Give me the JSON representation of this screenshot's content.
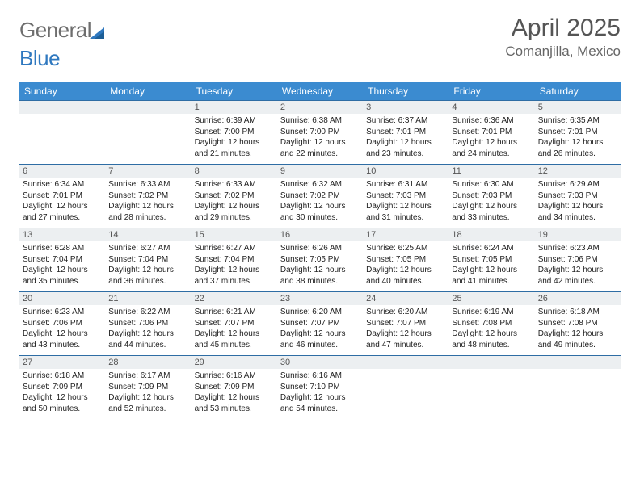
{
  "brand": {
    "part1": "General",
    "part2": "Blue"
  },
  "title": "April 2025",
  "location": "Comanjilla, Mexico",
  "colors": {
    "header_bg": "#3b8bd0",
    "header_text": "#ffffff",
    "row_border": "#2e6da4",
    "daynum_bg": "#eceff1",
    "body_text": "#222222",
    "title_text": "#555555",
    "logo_gray": "#6e6e6e",
    "logo_blue": "#2f78bf"
  },
  "weekdays": [
    "Sunday",
    "Monday",
    "Tuesday",
    "Wednesday",
    "Thursday",
    "Friday",
    "Saturday"
  ],
  "grid": [
    [
      null,
      null,
      {
        "n": 1,
        "sr": "6:39 AM",
        "ss": "7:00 PM",
        "dl": "12 hours and 21 minutes."
      },
      {
        "n": 2,
        "sr": "6:38 AM",
        "ss": "7:00 PM",
        "dl": "12 hours and 22 minutes."
      },
      {
        "n": 3,
        "sr": "6:37 AM",
        "ss": "7:01 PM",
        "dl": "12 hours and 23 minutes."
      },
      {
        "n": 4,
        "sr": "6:36 AM",
        "ss": "7:01 PM",
        "dl": "12 hours and 24 minutes."
      },
      {
        "n": 5,
        "sr": "6:35 AM",
        "ss": "7:01 PM",
        "dl": "12 hours and 26 minutes."
      }
    ],
    [
      {
        "n": 6,
        "sr": "6:34 AM",
        "ss": "7:01 PM",
        "dl": "12 hours and 27 minutes."
      },
      {
        "n": 7,
        "sr": "6:33 AM",
        "ss": "7:02 PM",
        "dl": "12 hours and 28 minutes."
      },
      {
        "n": 8,
        "sr": "6:33 AM",
        "ss": "7:02 PM",
        "dl": "12 hours and 29 minutes."
      },
      {
        "n": 9,
        "sr": "6:32 AM",
        "ss": "7:02 PM",
        "dl": "12 hours and 30 minutes."
      },
      {
        "n": 10,
        "sr": "6:31 AM",
        "ss": "7:03 PM",
        "dl": "12 hours and 31 minutes."
      },
      {
        "n": 11,
        "sr": "6:30 AM",
        "ss": "7:03 PM",
        "dl": "12 hours and 33 minutes."
      },
      {
        "n": 12,
        "sr": "6:29 AM",
        "ss": "7:03 PM",
        "dl": "12 hours and 34 minutes."
      }
    ],
    [
      {
        "n": 13,
        "sr": "6:28 AM",
        "ss": "7:04 PM",
        "dl": "12 hours and 35 minutes."
      },
      {
        "n": 14,
        "sr": "6:27 AM",
        "ss": "7:04 PM",
        "dl": "12 hours and 36 minutes."
      },
      {
        "n": 15,
        "sr": "6:27 AM",
        "ss": "7:04 PM",
        "dl": "12 hours and 37 minutes."
      },
      {
        "n": 16,
        "sr": "6:26 AM",
        "ss": "7:05 PM",
        "dl": "12 hours and 38 minutes."
      },
      {
        "n": 17,
        "sr": "6:25 AM",
        "ss": "7:05 PM",
        "dl": "12 hours and 40 minutes."
      },
      {
        "n": 18,
        "sr": "6:24 AM",
        "ss": "7:05 PM",
        "dl": "12 hours and 41 minutes."
      },
      {
        "n": 19,
        "sr": "6:23 AM",
        "ss": "7:06 PM",
        "dl": "12 hours and 42 minutes."
      }
    ],
    [
      {
        "n": 20,
        "sr": "6:23 AM",
        "ss": "7:06 PM",
        "dl": "12 hours and 43 minutes."
      },
      {
        "n": 21,
        "sr": "6:22 AM",
        "ss": "7:06 PM",
        "dl": "12 hours and 44 minutes."
      },
      {
        "n": 22,
        "sr": "6:21 AM",
        "ss": "7:07 PM",
        "dl": "12 hours and 45 minutes."
      },
      {
        "n": 23,
        "sr": "6:20 AM",
        "ss": "7:07 PM",
        "dl": "12 hours and 46 minutes."
      },
      {
        "n": 24,
        "sr": "6:20 AM",
        "ss": "7:07 PM",
        "dl": "12 hours and 47 minutes."
      },
      {
        "n": 25,
        "sr": "6:19 AM",
        "ss": "7:08 PM",
        "dl": "12 hours and 48 minutes."
      },
      {
        "n": 26,
        "sr": "6:18 AM",
        "ss": "7:08 PM",
        "dl": "12 hours and 49 minutes."
      }
    ],
    [
      {
        "n": 27,
        "sr": "6:18 AM",
        "ss": "7:09 PM",
        "dl": "12 hours and 50 minutes."
      },
      {
        "n": 28,
        "sr": "6:17 AM",
        "ss": "7:09 PM",
        "dl": "12 hours and 52 minutes."
      },
      {
        "n": 29,
        "sr": "6:16 AM",
        "ss": "7:09 PM",
        "dl": "12 hours and 53 minutes."
      },
      {
        "n": 30,
        "sr": "6:16 AM",
        "ss": "7:10 PM",
        "dl": "12 hours and 54 minutes."
      },
      null,
      null,
      null
    ]
  ],
  "labels": {
    "sunrise": "Sunrise:",
    "sunset": "Sunset:",
    "daylight": "Daylight:"
  }
}
